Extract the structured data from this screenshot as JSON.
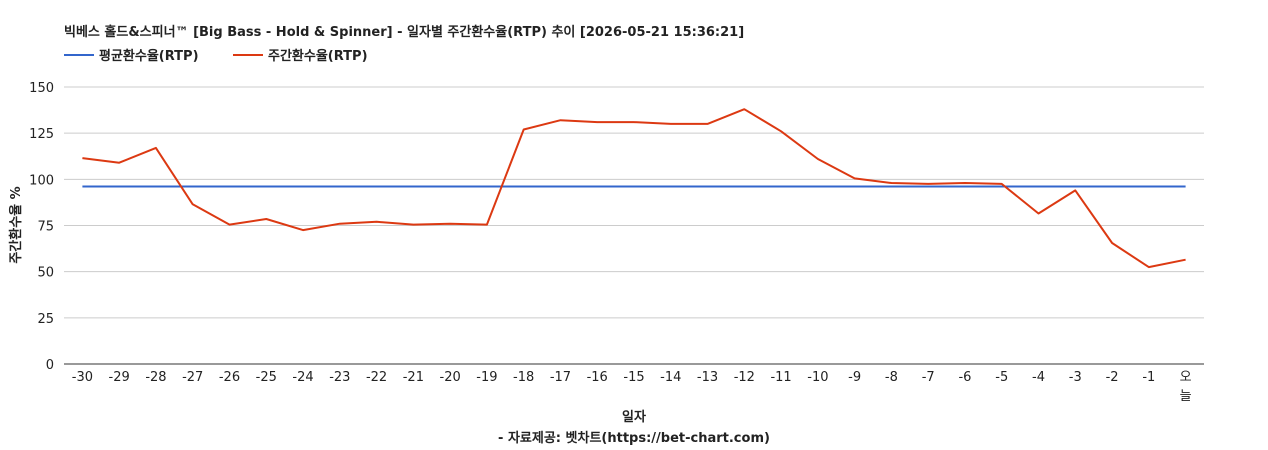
{
  "chart_data": {
    "type": "line",
    "title": "빅베스 홀드&스피너™ [Big Bass - Hold & Spinner] - 일자별 주간환수율(RTP) 추이 [2026-05-21 15:36:21]",
    "xlabel": "일자",
    "ylabel": "주간환수율 %",
    "credit": "- 자료제공: 벳차트(https://bet-chart.com)",
    "ylim": [
      0,
      150
    ],
    "yticks": [
      0,
      25,
      50,
      75,
      100,
      125,
      150
    ],
    "grid": true,
    "legend_position": "top-left",
    "categories": [
      "-30",
      "-29",
      "-28",
      "-27",
      "-26",
      "-25",
      "-24",
      "-23",
      "-22",
      "-21",
      "-20",
      "-19",
      "-18",
      "-17",
      "-16",
      "-15",
      "-14",
      "-13",
      "-12",
      "-11",
      "-10",
      "-9",
      "-8",
      "-7",
      "-6",
      "-5",
      "-4",
      "-3",
      "-2",
      "-1",
      "오늘"
    ],
    "series": [
      {
        "name": "평균환수율(RTP)",
        "color": "#3366cc",
        "values": [
          96.1,
          96.1,
          96.1,
          96.1,
          96.1,
          96.1,
          96.1,
          96.1,
          96.1,
          96.1,
          96.1,
          96.1,
          96.1,
          96.1,
          96.1,
          96.1,
          96.1,
          96.1,
          96.1,
          96.1,
          96.1,
          96.1,
          96.1,
          96.1,
          96.1,
          96.1,
          96.1,
          96.1,
          96.1,
          96.1,
          96.1
        ]
      },
      {
        "name": "주간환수율(RTP)",
        "color": "#dc3912",
        "values": [
          111.5,
          109,
          117,
          86.5,
          75.5,
          78.5,
          72.5,
          76,
          77,
          75.5,
          76,
          75.5,
          127,
          132,
          131,
          131,
          130,
          130,
          138,
          126,
          111,
          100.5,
          98,
          97.5,
          98,
          97.5,
          81.5,
          94,
          65.5,
          52.5,
          56.5
        ]
      }
    ]
  }
}
